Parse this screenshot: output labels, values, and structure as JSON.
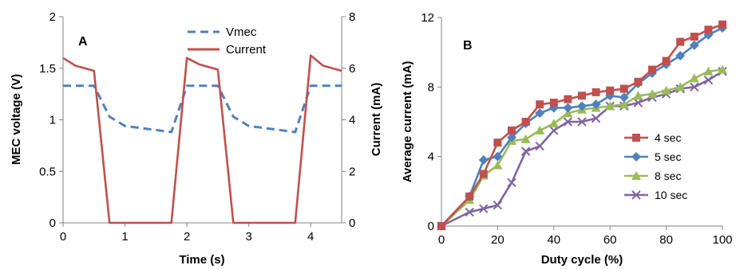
{
  "chart_data": [
    {
      "type": "line",
      "panel_label": "A",
      "xlabel": "Time (s)",
      "ylabel": "MEC voltage  (V)",
      "y2label": "Current (mA)",
      "xlim": [
        0,
        4.5
      ],
      "ylim": [
        0,
        2
      ],
      "y2lim": [
        0,
        8
      ],
      "xticks": [
        "0",
        "1",
        "2",
        "3",
        "4"
      ],
      "yticks": [
        "0",
        "0.5",
        "1",
        "1.5",
        "2"
      ],
      "y2ticks": [
        "0",
        "2",
        "4",
        "6",
        "8"
      ],
      "grid": false,
      "legend_position": "top-center",
      "series": [
        {
          "name": "Vmec",
          "axis": "left",
          "color": "#4f81bd",
          "dash": true,
          "x": [
            0,
            0.5,
            0.75,
            1.0,
            1.5,
            1.75,
            2.0,
            2.5,
            2.75,
            3.0,
            3.5,
            3.75,
            4.0,
            4.5
          ],
          "y": [
            1.33,
            1.33,
            1.03,
            0.94,
            0.9,
            0.88,
            1.33,
            1.33,
            1.03,
            0.94,
            0.9,
            0.88,
            1.33,
            1.33
          ]
        },
        {
          "name": "Current",
          "axis": "right",
          "color": "#c0504d",
          "dash": false,
          "x": [
            0,
            0.2,
            0.5,
            0.75,
            1.75,
            2.0,
            2.2,
            2.5,
            2.75,
            3.75,
            4.0,
            4.2,
            4.5
          ],
          "y": [
            6.4,
            6.1,
            5.9,
            0,
            0,
            6.4,
            6.15,
            5.95,
            0,
            0,
            6.5,
            6.1,
            5.9
          ]
        }
      ]
    },
    {
      "type": "line",
      "panel_label": "B",
      "xlabel": "Duty cycle (%)",
      "ylabel": "Average current (mA)",
      "xlim": [
        0,
        100
      ],
      "ylim": [
        0,
        12
      ],
      "xticks": [
        "0",
        "20",
        "40",
        "60",
        "80",
        "100"
      ],
      "yticks": [
        "0",
        "4",
        "8",
        "12"
      ],
      "grid": false,
      "legend_position": "right",
      "x": [
        0,
        10,
        15,
        20,
        25,
        30,
        35,
        40,
        45,
        50,
        55,
        60,
        65,
        70,
        75,
        80,
        85,
        90,
        95,
        100
      ],
      "series": [
        {
          "name": "4 sec",
          "color": "#c0504d",
          "marker": "square",
          "values": [
            0,
            1.7,
            3.0,
            4.8,
            5.5,
            6.0,
            7.0,
            7.1,
            7.3,
            7.5,
            7.7,
            7.8,
            7.9,
            8.3,
            9.0,
            9.5,
            10.6,
            10.9,
            11.3,
            11.6
          ]
        },
        {
          "name": "5 sec",
          "color": "#4f81bd",
          "marker": "diamond",
          "values": [
            0,
            1.7,
            3.8,
            4.0,
            5.1,
            5.9,
            6.5,
            6.8,
            6.8,
            6.9,
            7.0,
            7.5,
            7.4,
            8.2,
            8.8,
            9.3,
            9.8,
            10.4,
            11.0,
            11.4
          ]
        },
        {
          "name": "8 sec",
          "color": "#9bbb59",
          "marker": "triangle",
          "values": [
            0,
            1.5,
            2.9,
            3.5,
            4.9,
            5.0,
            5.5,
            5.9,
            6.5,
            6.7,
            6.8,
            6.9,
            7.0,
            7.5,
            7.6,
            7.8,
            8.0,
            8.5,
            8.9,
            9.0
          ]
        },
        {
          "name": "10 sec",
          "color": "#8064a2",
          "marker": "x",
          "values": [
            0,
            0.8,
            1.0,
            1.2,
            2.5,
            4.3,
            4.6,
            5.5,
            6.0,
            6.0,
            6.2,
            6.9,
            6.9,
            7.1,
            7.4,
            7.6,
            7.9,
            8.0,
            8.4,
            8.9
          ]
        }
      ]
    }
  ]
}
